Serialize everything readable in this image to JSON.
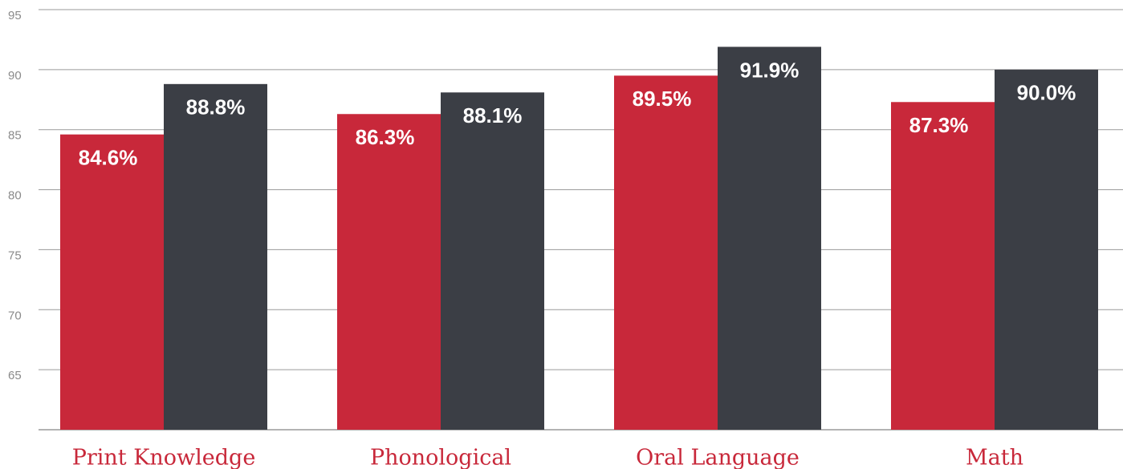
{
  "chart_data": {
    "type": "bar",
    "categories": [
      "Print Knowledge",
      "Phonological",
      "Oral Language",
      "Math"
    ],
    "series": [
      {
        "color": "#c8283a",
        "values": [
          84.6,
          86.3,
          89.5,
          87.3
        ],
        "value_labels": [
          "84.6%",
          "86.3%",
          "89.5%",
          "87.3%"
        ]
      },
      {
        "color": "#3b3e45",
        "values": [
          88.8,
          88.1,
          91.9,
          90.0
        ],
        "value_labels": [
          "88.8%",
          "88.1%",
          "91.9%",
          "90.0%"
        ]
      }
    ],
    "ylim": [
      60,
      95
    ],
    "yticks": [
      65,
      70,
      75,
      80,
      85,
      90,
      95
    ],
    "grid": true
  }
}
